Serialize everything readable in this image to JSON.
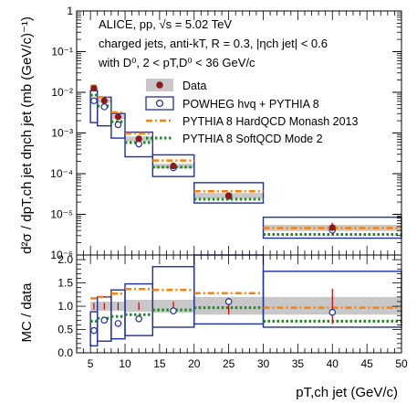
{
  "chart_data": [
    {
      "type": "line",
      "panel": "top",
      "yscale": "log",
      "ylim": [
        1e-06,
        1
      ],
      "xlim": [
        3,
        50
      ],
      "ylabel": "d²σ / dpT,ch jet dηch jet (mb (GeV/c)⁻¹)",
      "y_tick_labels": [
        "10⁻⁶",
        "10⁻⁵",
        "10⁻⁴",
        "10⁻³",
        "10⁻²",
        "10⁻¹",
        "1"
      ],
      "annotations": [
        "ALICE, pp, √s = 5.02 TeV",
        "charged jets, anti-kT, R = 0.3, |ηch jet| < 0.6",
        "with D⁰, 2 < pT,D⁰ < 36 GeV/c"
      ],
      "bins": [
        [
          5,
          6
        ],
        [
          6,
          8
        ],
        [
          8,
          10
        ],
        [
          10,
          14
        ],
        [
          14,
          20
        ],
        [
          20,
          30
        ],
        [
          30,
          50
        ]
      ],
      "bin_centers": [
        5.5,
        7,
        9,
        12,
        17,
        25,
        40
      ],
      "series": [
        {
          "name": "Data",
          "marker": "filled-circle",
          "color": "#8b1a1a",
          "values": [
            0.0125,
            0.0062,
            0.0025,
            0.00072,
            0.000155,
            2.9e-05,
            4.7e-06
          ],
          "syst_low": [
            0.0112,
            0.0055,
            0.0022,
            0.00062,
            0.000135,
            2.45e-05,
            3.9e-06
          ],
          "syst_high": [
            0.0138,
            0.0069,
            0.0028,
            0.00082,
            0.000175,
            3.35e-05,
            5.5e-06
          ],
          "stat_err": [
            0.0008,
            0.0004,
            0.0002,
            6e-05,
            1.5e-05,
            4e-06,
            1.5e-06
          ]
        },
        {
          "name": "POWHEG hvq + PYTHIA 8",
          "marker": "open-circle",
          "color": "#1f2fa0",
          "values": [
            0.0062,
            0.0044,
            0.0016,
            0.00054,
            0.00014,
            2.8e-05,
            4.1e-06
          ],
          "band_low": [
            0.0018,
            0.0015,
            0.00075,
            0.00026,
            8.5e-05,
            1.9e-05,
            2.6e-06
          ],
          "band_high": [
            0.011,
            0.0076,
            0.003,
            0.00105,
            0.00029,
            6e-05,
            8.5e-06
          ]
        },
        {
          "name": "PYTHIA 8 HardQCD Monash 2013",
          "line": "dash-dot",
          "color": "#ff7f00",
          "values": [
            0.0145,
            0.0075,
            0.0032,
            0.00098,
            0.00021,
            3.7e-05,
            4.6e-06
          ]
        },
        {
          "name": "PYTHIA 8 SoftQCD Mode 2",
          "line": "dotted",
          "color": "#1d8a1d",
          "values": [
            0.0085,
            0.0046,
            0.0019,
            0.00058,
            0.000145,
            2.35e-05,
            3.2e-06
          ]
        }
      ]
    },
    {
      "type": "line",
      "panel": "bottom",
      "ylabel": "MC / data",
      "xlabel": "pT,ch jet (GeV/c)",
      "ylim": [
        0,
        2.1
      ],
      "xlim": [
        3,
        50
      ],
      "x_ticks": [
        5,
        10,
        15,
        20,
        25,
        30,
        35,
        40,
        45,
        50
      ],
      "y_ticks": [
        0,
        0.5,
        1,
        1.5,
        2
      ],
      "x_tick_labels": [
        "5",
        "10",
        "15",
        "20",
        "25",
        "30",
        "35",
        "40",
        "45",
        "50"
      ],
      "y_tick_labels": [
        "0.0",
        "0.5",
        "1.0",
        "1.5",
        "2.0"
      ],
      "data_syst_band": {
        "low": [
          0.9,
          0.9,
          0.9,
          0.88,
          0.86,
          0.82,
          0.82
        ],
        "high": [
          1.1,
          1.1,
          1.1,
          1.14,
          1.14,
          1.2,
          1.2
        ]
      },
      "data_stat_err": [
        0.07,
        0.07,
        0.08,
        0.08,
        0.1,
        0.18,
        0.38
      ],
      "series": [
        {
          "name": "POWHEG hvq + PYTHIA 8",
          "color": "#1f2fa0",
          "values": [
            0.48,
            0.7,
            0.63,
            0.73,
            0.9,
            1.1,
            0.87
          ],
          "band_low": [
            0.15,
            0.25,
            0.3,
            0.37,
            0.55,
            0.62,
            0.55
          ],
          "band_high": [
            0.88,
            1.2,
            1.35,
            1.48,
            1.85,
            2.1,
            1.75
          ]
        },
        {
          "name": "PYTHIA 8 HardQCD Monash 2013",
          "color": "#ff7f00",
          "values": [
            1.17,
            1.2,
            1.27,
            1.37,
            1.35,
            1.28,
            0.97
          ]
        },
        {
          "name": "PYTHIA 8 SoftQCD Mode 2",
          "color": "#1d8a1d",
          "values": [
            0.68,
            0.74,
            0.78,
            0.82,
            0.92,
            0.97,
            0.68
          ]
        }
      ]
    }
  ]
}
